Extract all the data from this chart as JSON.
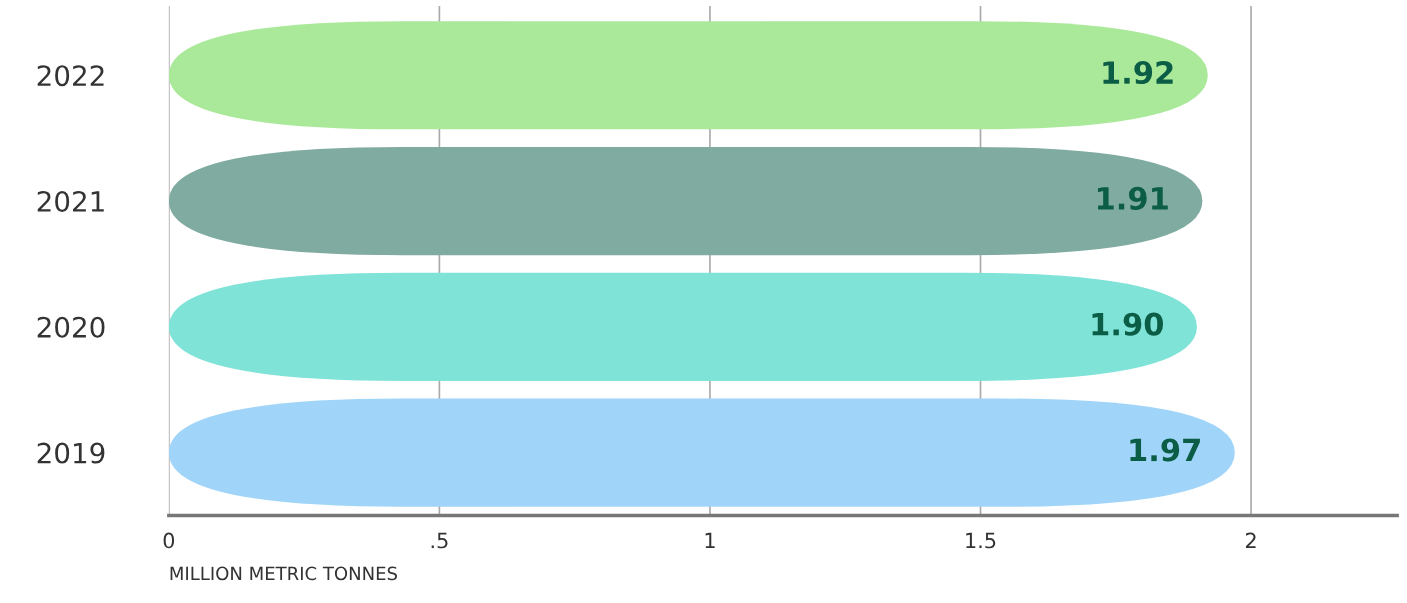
{
  "chart_data": {
    "type": "bar",
    "orientation": "horizontal",
    "categories": [
      "2022",
      "2021",
      "2020",
      "2019"
    ],
    "values": [
      1.92,
      1.91,
      1.9,
      1.97
    ],
    "colors": [
      "#abe99a",
      "#80aba0",
      "#80e3d8",
      "#a0d4f8"
    ],
    "value_labels": [
      "1.92",
      "1.91",
      "1.90",
      "1.97"
    ],
    "xlabel": "MILLION METRIC TONNES",
    "xlim": [
      0,
      2.27
    ],
    "xticks": [
      0,
      {
        "value": 0.5,
        "label": ".5"
      },
      1,
      1.5,
      2
    ],
    "grid": "x"
  }
}
